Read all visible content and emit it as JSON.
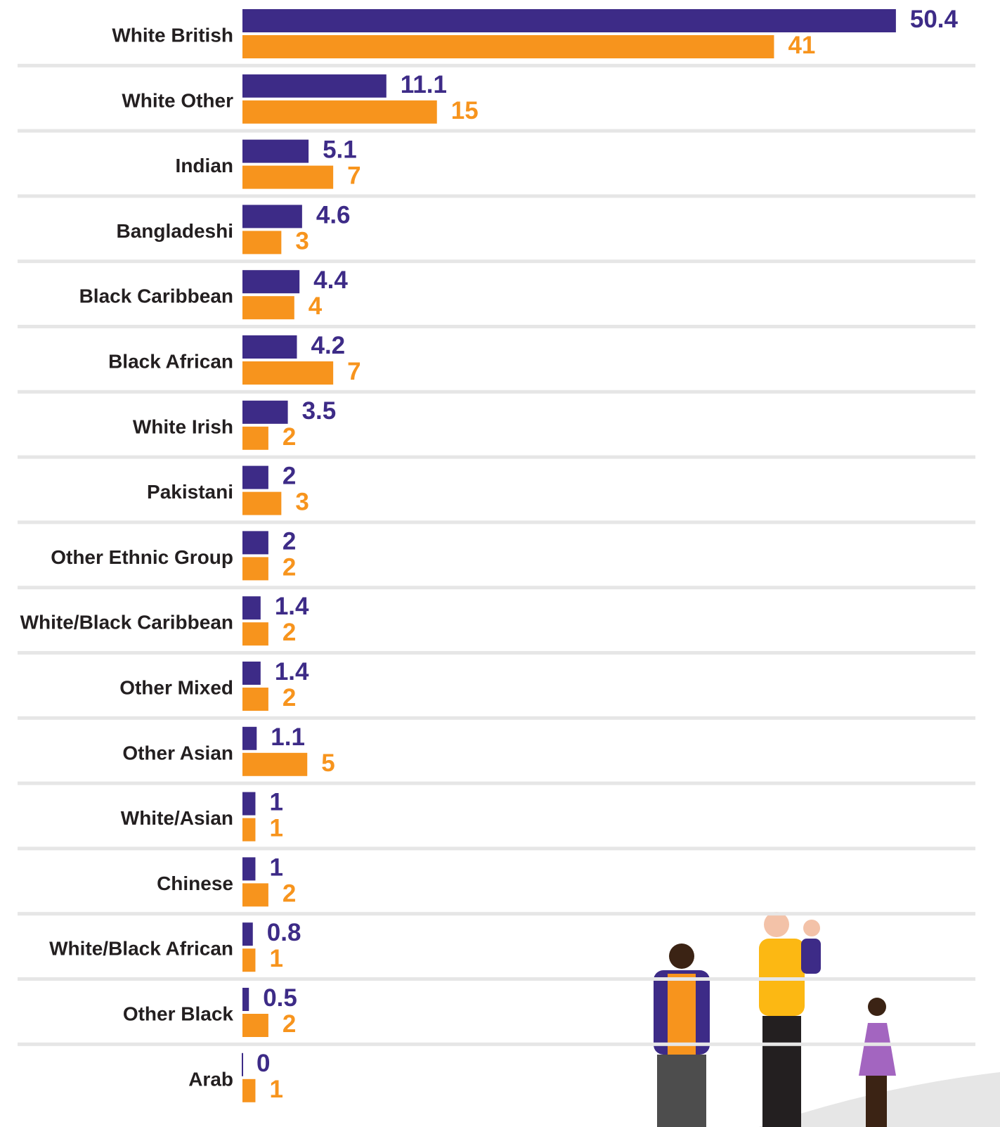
{
  "chart_data": {
    "type": "bar",
    "orientation": "horizontal",
    "categories": [
      "White British",
      "White Other",
      "Indian",
      "Bangladeshi",
      "Black Caribbean",
      "Black African",
      "White Irish",
      "Pakistani",
      "Other Ethnic Group",
      "White/Black Caribbean",
      "Other Mixed",
      "Other Asian",
      "White/Asian",
      "Chinese",
      "White/Black African",
      "Other Black",
      "Arab"
    ],
    "series": [
      {
        "color": "#3d2b87",
        "values": [
          50.4,
          11.1,
          5.1,
          4.6,
          4.4,
          4.2,
          3.5,
          2,
          2,
          1.4,
          1.4,
          1.1,
          1,
          1,
          0.8,
          0.5,
          0
        ]
      },
      {
        "color": "#f7941d",
        "values": [
          41,
          15,
          7,
          3,
          4,
          7,
          2,
          3,
          2,
          2,
          2,
          5,
          1,
          2,
          1,
          2,
          1
        ]
      }
    ]
  }
}
